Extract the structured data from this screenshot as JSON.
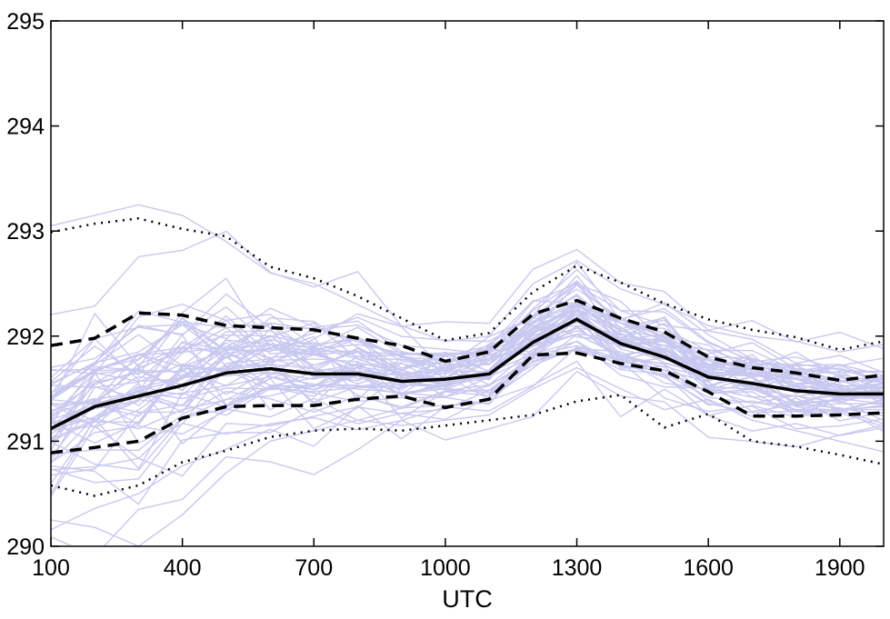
{
  "chart_data": {
    "type": "line",
    "title": "",
    "xlabel": "UTC",
    "ylabel": "",
    "xlim": [
      100,
      2000
    ],
    "ylim": [
      290,
      295
    ],
    "xticks": [
      100,
      400,
      700,
      1000,
      1300,
      1600,
      1900
    ],
    "xtick_labels": [
      "100",
      "400",
      "700",
      "1000",
      "1300",
      "1600",
      "1900"
    ],
    "yticks": [
      290,
      291,
      292,
      293,
      294,
      295
    ],
    "ytick_labels": [
      "290",
      "291",
      "292",
      "293",
      "294",
      "295"
    ],
    "grid": false,
    "legend": "none",
    "x": [
      100,
      200,
      300,
      400,
      500,
      600,
      700,
      800,
      900,
      1000,
      1100,
      1200,
      1300,
      1400,
      1500,
      1600,
      1700,
      1800,
      1900,
      2000
    ],
    "series": [
      {
        "role": "median",
        "style": "solid",
        "color": "#000000",
        "values": [
          291.12,
          291.33,
          291.43,
          291.53,
          291.65,
          291.69,
          291.64,
          291.64,
          291.57,
          291.59,
          291.64,
          291.94,
          292.16,
          291.93,
          291.8,
          291.61,
          291.55,
          291.48,
          291.45,
          291.45
        ]
      },
      {
        "role": "upper-quartile",
        "style": "dashed",
        "color": "#000000",
        "values": [
          291.91,
          291.98,
          292.22,
          292.2,
          292.1,
          292.08,
          292.06,
          291.98,
          291.91,
          291.76,
          291.85,
          292.21,
          292.34,
          292.17,
          292.04,
          291.8,
          291.7,
          291.65,
          291.58,
          291.63
        ]
      },
      {
        "role": "lower-quartile",
        "style": "dashed",
        "color": "#000000",
        "values": [
          290.89,
          290.94,
          291.0,
          291.22,
          291.33,
          291.34,
          291.34,
          291.4,
          291.43,
          291.32,
          291.4,
          291.82,
          291.84,
          291.74,
          291.67,
          291.47,
          291.24,
          291.24,
          291.25,
          291.27
        ]
      },
      {
        "role": "upper-envelope",
        "style": "dotted",
        "color": "#000000",
        "values": [
          292.99,
          293.07,
          293.12,
          293.02,
          292.95,
          292.66,
          292.55,
          292.38,
          292.17,
          291.96,
          292.03,
          292.42,
          292.67,
          292.51,
          292.31,
          292.16,
          292.06,
          291.99,
          291.87,
          291.95
        ]
      },
      {
        "role": "lower-envelope",
        "style": "dotted",
        "color": "#000000",
        "values": [
          290.58,
          290.48,
          290.58,
          290.8,
          290.91,
          291.04,
          291.1,
          291.12,
          291.1,
          291.15,
          291.2,
          291.25,
          291.38,
          291.44,
          291.13,
          291.26,
          291.0,
          290.95,
          290.87,
          290.78
        ]
      }
    ],
    "ensemble": {
      "color": "#c8c8f0",
      "member_count": 60,
      "spread_scale": [
        0.62,
        0.72,
        0.78,
        0.72,
        0.68,
        0.6,
        0.55,
        0.5,
        0.44,
        0.35,
        0.35,
        0.38,
        0.44,
        0.4,
        0.4,
        0.36,
        0.38,
        0.33,
        0.3,
        0.32
      ],
      "extra_members": [
        {
          "values": [
            290.25,
            290.18,
            290.0,
            290.3,
            290.7,
            291.0,
            291.1,
            291.2,
            291.15,
            291.2,
            291.25,
            291.5,
            291.7,
            291.5,
            291.3,
            291.4,
            291.2,
            291.1,
            291.0,
            290.9
          ]
        },
        {
          "values": [
            293.05,
            293.15,
            293.25,
            293.15,
            292.9,
            292.6,
            292.5,
            292.3,
            292.1,
            291.95,
            292.0,
            292.5,
            292.72,
            292.45,
            292.3,
            292.1,
            292.0,
            291.95,
            291.85,
            291.92
          ]
        }
      ]
    }
  }
}
